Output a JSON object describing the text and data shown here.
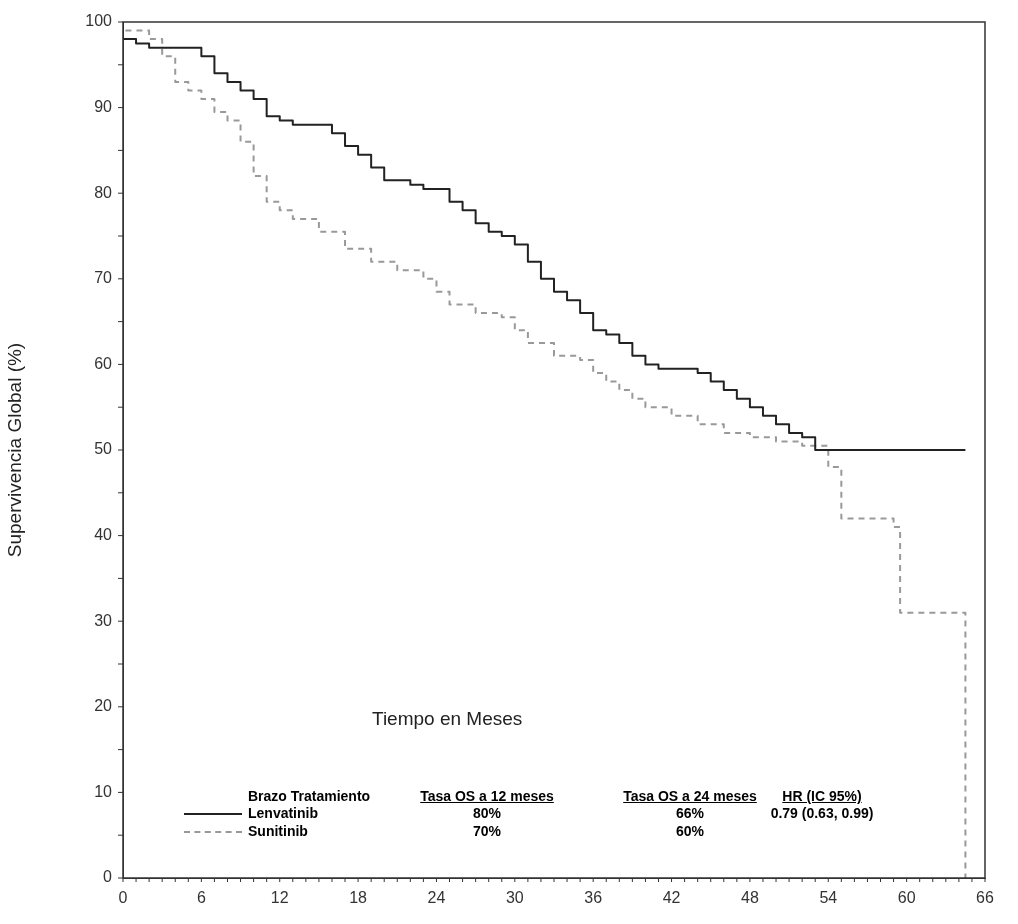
{
  "chart_data": {
    "type": "step",
    "xlabel": "Tiempo en Meses",
    "ylabel": "Supervivencia Global (%)",
    "xlim": [
      0,
      66
    ],
    "xticks": [
      0,
      6,
      12,
      18,
      24,
      30,
      36,
      42,
      48,
      54,
      60,
      66
    ],
    "ylim": [
      0,
      100
    ],
    "yticks": [
      0,
      10,
      20,
      30,
      40,
      50,
      60,
      70,
      80,
      90,
      100
    ],
    "legend": "bottom left",
    "grid": false,
    "series": [
      {
        "name": "Lenvatinib",
        "color": "#222222",
        "line_style": "solid",
        "x": [
          0,
          1,
          2,
          3,
          6,
          7,
          8,
          9,
          10,
          11,
          12,
          13,
          14,
          16,
          17,
          18,
          19,
          20,
          22,
          23,
          25,
          26,
          27,
          28,
          29,
          30,
          31,
          32,
          33,
          34,
          35,
          36,
          37,
          38,
          39,
          40,
          41,
          44,
          45,
          46,
          47,
          48,
          49,
          50,
          51,
          52,
          53,
          54,
          64.5
        ],
        "values": [
          100,
          98,
          97.5,
          97,
          97,
          96,
          94,
          93,
          92,
          91,
          89,
          88.5,
          88,
          88,
          87,
          85.5,
          84.5,
          83,
          81.5,
          81,
          80.5,
          79,
          78,
          76.5,
          75.5,
          75,
          74,
          72,
          70,
          68.5,
          67.5,
          66,
          64,
          63.5,
          62.5,
          61,
          60,
          59.5,
          59,
          58,
          57,
          56,
          55,
          54,
          53,
          52,
          51.5,
          50,
          50
        ]
      },
      {
        "name": "Sunitinib",
        "color": "#999999",
        "line_style": "dashed",
        "x": [
          0,
          2,
          3,
          4,
          5,
          6,
          7,
          8,
          9,
          10,
          11,
          12,
          13,
          15,
          17,
          19,
          21,
          23,
          24,
          25,
          27,
          29,
          30,
          31,
          33,
          35,
          36,
          37,
          38,
          39,
          40,
          42,
          44,
          46,
          48,
          50,
          52,
          54,
          55,
          59,
          59.5,
          60,
          64.5,
          64.6
        ],
        "values": [
          100,
          99,
          98,
          96,
          93,
          92,
          91,
          89.5,
          88.5,
          86,
          82,
          79,
          78,
          77,
          75.5,
          73.5,
          72,
          71,
          70,
          68.5,
          67,
          66,
          65.5,
          64,
          62.5,
          61,
          60.5,
          59,
          58,
          57,
          56,
          55,
          54,
          53,
          52,
          51.5,
          51,
          50.5,
          48,
          42,
          41,
          31,
          31,
          0
        ]
      }
    ],
    "annotations": [
      "Brazo Tratamiento",
      "Tasa OS a 12 meses",
      "Tasa OS a 24 meses",
      "HR (IC 95%)",
      "80%",
      "66%",
      "0.79 (0.63, 0.99)",
      "70%",
      "60%"
    ]
  }
}
